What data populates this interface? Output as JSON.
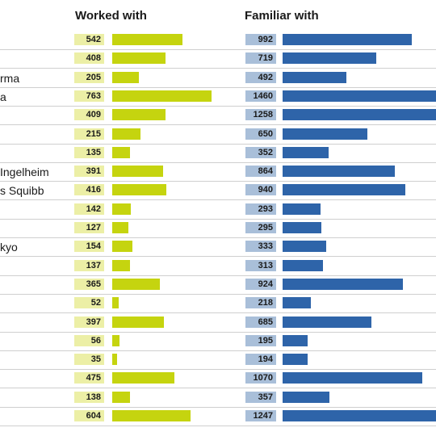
{
  "chart_data": {
    "type": "bar",
    "columns": [
      "Worked with",
      "Familiar with"
    ],
    "categories": [
      "",
      "",
      "rma",
      "a",
      "",
      "",
      "",
      "Ingelheim",
      "s Squibb",
      "",
      "",
      "kyo",
      "",
      "",
      "",
      "",
      "",
      "",
      "",
      "",
      ""
    ],
    "series": [
      {
        "name": "Worked with",
        "color": "#c5d40f",
        "label_bg": "#ecefa6",
        "values": [
          542,
          408,
          205,
          763,
          409,
          215,
          135,
          391,
          416,
          142,
          127,
          154,
          137,
          365,
          52,
          397,
          56,
          35,
          475,
          138,
          604
        ]
      },
      {
        "name": "Familiar with",
        "color": "#2e64a9",
        "label_bg": "#a9bfd9",
        "values": [
          992,
          719,
          492,
          1460,
          1258,
          650,
          352,
          864,
          940,
          293,
          295,
          333,
          313,
          924,
          218,
          685,
          195,
          194,
          1070,
          357,
          1247
        ]
      }
    ]
  }
}
